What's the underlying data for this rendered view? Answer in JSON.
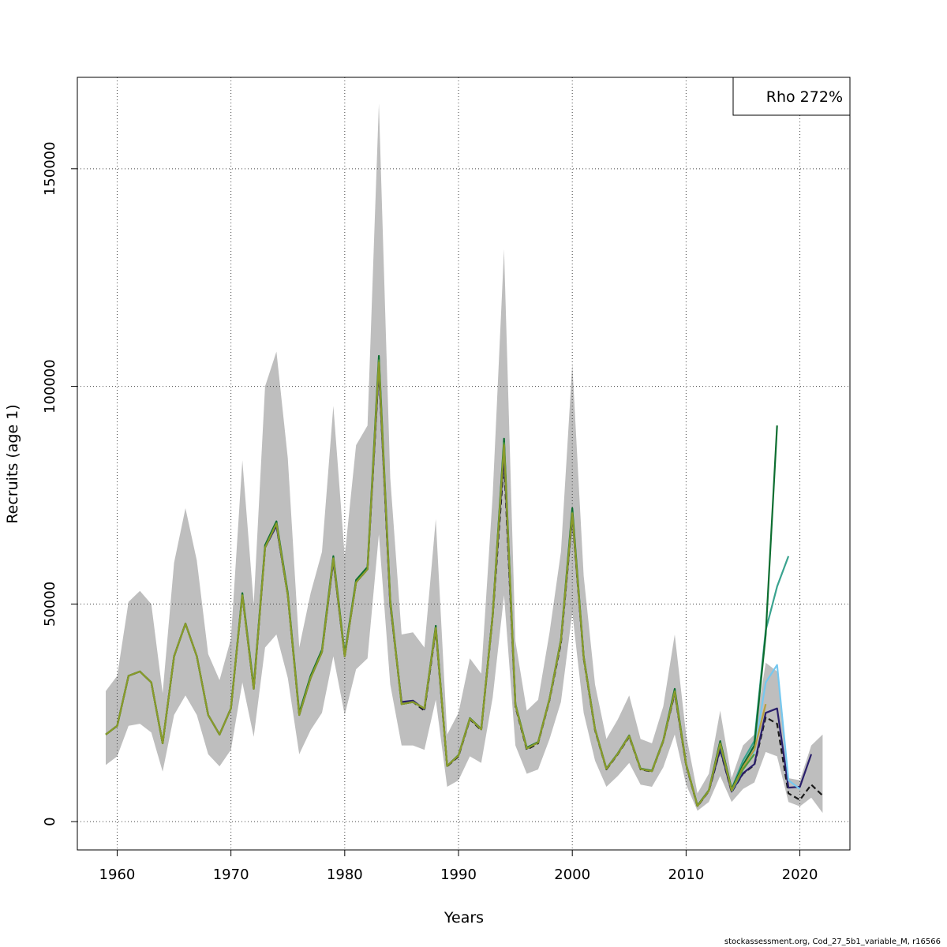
{
  "chart_data": {
    "type": "line",
    "ylabel": "Recruits (age 1)",
    "xlabel": "Years",
    "xlim": [
      1956.5,
      2024.4
    ],
    "ylim": [
      -6500,
      171000
    ],
    "x_ticks": [
      1960,
      1970,
      1980,
      1990,
      2000,
      2010,
      2020
    ],
    "y_ticks": [
      0,
      50000,
      100000,
      150000
    ],
    "grid": true,
    "legend_text": "Rho 272%",
    "legend_position": "top-right",
    "confidence_band": {
      "color": "#bebebe",
      "years": [
        1959,
        1960,
        1961,
        1962,
        1963,
        1964,
        1965,
        1966,
        1967,
        1968,
        1969,
        1970,
        1971,
        1972,
        1973,
        1974,
        1975,
        1976,
        1977,
        1978,
        1979,
        1980,
        1981,
        1982,
        1983,
        1984,
        1985,
        1986,
        1987,
        1988,
        1989,
        1990,
        1991,
        1992,
        1993,
        1994,
        1995,
        1996,
        1997,
        1998,
        1999,
        2000,
        2001,
        2002,
        2003,
        2004,
        2005,
        2006,
        2007,
        2008,
        2009,
        2010,
        2011,
        2012,
        2013,
        2014,
        2015,
        2016,
        2017,
        2018,
        2019,
        2020,
        2021,
        2022
      ],
      "lower": [
        13000,
        15000,
        22000,
        22500,
        20500,
        11500,
        24500,
        29000,
        24500,
        15500,
        12700,
        16500,
        32000,
        19500,
        40000,
        43000,
        33000,
        15500,
        21000,
        25000,
        38000,
        24500,
        35000,
        37500,
        66000,
        31500,
        17500,
        17500,
        16500,
        28000,
        8000,
        9500,
        15000,
        13500,
        28500,
        52000,
        17500,
        11000,
        12000,
        19000,
        27500,
        48000,
        25000,
        14000,
        8000,
        10500,
        13500,
        8500,
        8000,
        12500,
        20000,
        8500,
        2500,
        4500,
        10500,
        4500,
        7500,
        9000,
        16000,
        15000,
        4500,
        3500,
        5500,
        2000
      ],
      "upper": [
        30000,
        33500,
        50500,
        53000,
        50000,
        29500,
        59500,
        72000,
        60000,
        38500,
        32500,
        42000,
        83000,
        50000,
        100000,
        108000,
        83500,
        40000,
        52500,
        62000,
        95500,
        61000,
        86500,
        91000,
        165000,
        79000,
        43000,
        43500,
        40000,
        69500,
        20000,
        25000,
        37500,
        34000,
        75000,
        131500,
        41500,
        25500,
        28000,
        43500,
        62000,
        105000,
        56500,
        31500,
        19000,
        23500,
        29000,
        19000,
        18000,
        26500,
        43000,
        20000,
        6500,
        11000,
        25500,
        10000,
        17500,
        20000,
        36500,
        34500,
        10000,
        9500,
        17500,
        20000
      ]
    },
    "series": [
      {
        "color": "#1a1a1a",
        "dashed": true,
        "x": [
          1959,
          1960,
          1961,
          1962,
          1963,
          1964,
          1965,
          1966,
          1967,
          1968,
          1969,
          1970,
          1971,
          1972,
          1973,
          1974,
          1975,
          1976,
          1977,
          1978,
          1979,
          1980,
          1981,
          1982,
          1983,
          1984,
          1985,
          1986,
          1987,
          1988,
          1989,
          1990,
          1991,
          1992,
          1993,
          1994,
          1995,
          1996,
          1997,
          1998,
          1999,
          2000,
          2001,
          2002,
          2003,
          2004,
          2005,
          2006,
          2007,
          2008,
          2009,
          2010,
          2011,
          2012,
          2013,
          2014,
          2015,
          2016,
          2017,
          2018,
          2019,
          2020,
          2021,
          2022
        ],
        "y": [
          20000,
          22000,
          33500,
          34500,
          32000,
          18000,
          38000,
          45500,
          38000,
          24500,
          20000,
          26000,
          52000,
          30500,
          63000,
          68000,
          52000,
          24500,
          33000,
          39000,
          60000,
          38000,
          55000,
          58000,
          104000,
          50000,
          27000,
          27500,
          25500,
          44000,
          12700,
          15000,
          23500,
          21000,
          47000,
          83000,
          26500,
          16500,
          18000,
          28000,
          41000,
          70000,
          37500,
          21000,
          12000,
          15500,
          19500,
          12000,
          11500,
          18500,
          29500,
          13000,
          3500,
          7000,
          16500,
          6800,
          11000,
          13000,
          24000,
          22500,
          6500,
          5000,
          8500,
          6000
        ]
      },
      {
        "color": "#2a1f6b",
        "dashed": false,
        "x": [
          1959,
          1960,
          1961,
          1962,
          1963,
          1964,
          1965,
          1966,
          1967,
          1968,
          1969,
          1970,
          1971,
          1972,
          1973,
          1974,
          1975,
          1976,
          1977,
          1978,
          1979,
          1980,
          1981,
          1982,
          1983,
          1984,
          1985,
          1986,
          1987,
          1988,
          1989,
          1990,
          1991,
          1992,
          1993,
          1994,
          1995,
          1996,
          1997,
          1998,
          1999,
          2000,
          2001,
          2002,
          2003,
          2004,
          2005,
          2006,
          2007,
          2008,
          2009,
          2010,
          2011,
          2012,
          2013,
          2014,
          2015,
          2016,
          2017,
          2018,
          2019,
          2020,
          2021
        ],
        "y": [
          20000,
          22000,
          33500,
          34500,
          32000,
          18000,
          38000,
          45500,
          38000,
          24500,
          20000,
          26000,
          52000,
          30500,
          63000,
          68000,
          52000,
          24500,
          33000,
          39000,
          60000,
          38000,
          55000,
          58000,
          104500,
          50000,
          27500,
          27800,
          25800,
          44500,
          12800,
          15200,
          23600,
          21200,
          47500,
          85000,
          26800,
          16800,
          18200,
          28200,
          41500,
          70500,
          37800,
          21200,
          12100,
          15600,
          19700,
          12100,
          11600,
          18600,
          29700,
          13100,
          3600,
          7100,
          16700,
          6900,
          11100,
          13200,
          25000,
          26000,
          7800,
          8000,
          15500
        ]
      },
      {
        "color": "#76c8ef",
        "dashed": false,
        "x": [
          2014,
          2015,
          2016,
          2017,
          2018,
          2019,
          2020
        ],
        "y": [
          7000,
          12000,
          16000,
          32000,
          36000,
          9500,
          7500
        ]
      },
      {
        "color": "#3aa38f",
        "dashed": false,
        "x": [
          2013,
          2014,
          2015,
          2016,
          2017,
          2018,
          2019
        ],
        "y": [
          17500,
          7500,
          14000,
          18500,
          44000,
          54000,
          61000
        ]
      },
      {
        "color": "#0d6e30",
        "dashed": false,
        "x": [
          1959,
          1960,
          1961,
          1962,
          1963,
          1964,
          1965,
          1966,
          1967,
          1968,
          1969,
          1970,
          1971,
          1972,
          1973,
          1974,
          1975,
          1976,
          1977,
          1978,
          1979,
          1980,
          1981,
          1982,
          1983,
          1984,
          1985,
          1986,
          1987,
          1988,
          1989,
          1990,
          1991,
          1992,
          1993,
          1994,
          1995,
          1996,
          1997,
          1998,
          1999,
          2000,
          2001,
          2002,
          2003,
          2004,
          2005,
          2006,
          2007,
          2008,
          2009,
          2010,
          2011,
          2012,
          2013,
          2014,
          2015,
          2016,
          2017,
          2018
        ],
        "y": [
          20000,
          22000,
          33500,
          34500,
          32000,
          18000,
          38000,
          45500,
          38000,
          24500,
          20000,
          26000,
          52500,
          31000,
          63500,
          69000,
          52500,
          25000,
          33500,
          39500,
          61000,
          38500,
          55500,
          58500,
          107000,
          51000,
          27000,
          27500,
          26000,
          45000,
          12800,
          15300,
          23800,
          21300,
          47500,
          88000,
          27000,
          17000,
          18300,
          28300,
          41800,
          72000,
          38000,
          21300,
          12200,
          15700,
          19800,
          12200,
          11700,
          18700,
          30500,
          13300,
          3700,
          7200,
          18500,
          7500,
          13000,
          17500,
          43000,
          91000
        ]
      },
      {
        "color": "#b8a040",
        "dashed": false,
        "x": [
          2013,
          2014,
          2015,
          2016,
          2017
        ],
        "y": [
          18000,
          7200,
          12500,
          16500,
          27000
        ]
      },
      {
        "color": "#4f9a3a",
        "dashed": false,
        "x": [
          1959,
          1960,
          1961,
          1962,
          1963,
          1964,
          1965,
          1966,
          1967,
          1968,
          1969,
          1970,
          1971,
          1972,
          1973,
          1974,
          1975,
          1976,
          1977,
          1978,
          1979,
          1980,
          1981,
          1982,
          1983,
          1984,
          1985,
          1986,
          1987,
          1988,
          1989,
          1990,
          1991,
          1992,
          1993,
          1994,
          1995,
          1996,
          1997,
          1998,
          1999,
          2000,
          2001,
          2002,
          2003,
          2004,
          2005,
          2006,
          2007,
          2008,
          2009,
          2010,
          2011,
          2012,
          2013,
          2014,
          2015,
          2016
        ],
        "y": [
          20000,
          22000,
          33500,
          34500,
          32000,
          18000,
          38000,
          45500,
          38000,
          24500,
          20000,
          26000,
          52000,
          30500,
          63000,
          68500,
          52000,
          24500,
          33000,
          39000,
          60500,
          38000,
          55000,
          58000,
          106000,
          50500,
          27000,
          27500,
          26000,
          44500,
          12800,
          15200,
          23700,
          21200,
          47300,
          87000,
          26800,
          16800,
          18200,
          28200,
          41600,
          71000,
          37800,
          21200,
          12100,
          15600,
          19700,
          12100,
          11600,
          18600,
          30000,
          13200,
          3600,
          7100,
          18000,
          7200,
          12000,
          15500
        ]
      },
      {
        "color": "#8a9a2a",
        "dashed": false,
        "x": [
          1959,
          1960,
          1961,
          1962,
          1963,
          1964,
          1965,
          1966,
          1967,
          1968,
          1969,
          1970,
          1971,
          1972,
          1973,
          1974,
          1975,
          1976,
          1977,
          1978,
          1979,
          1980,
          1981,
          1982,
          1983,
          1984,
          1985,
          1986,
          1987,
          1988,
          1989,
          1990,
          1991,
          1992,
          1993,
          1994,
          1995,
          1996,
          1997,
          1998,
          1999,
          2000,
          2001,
          2002,
          2003,
          2004,
          2005,
          2006,
          2007,
          2008,
          2009,
          2010,
          2011,
          2012,
          2013,
          2014,
          2015
        ],
        "y": [
          20000,
          22000,
          33500,
          34500,
          32000,
          18000,
          38000,
          45500,
          38000,
          24500,
          20000,
          26000,
          52000,
          30500,
          63000,
          68500,
          52000,
          24500,
          33000,
          39000,
          60500,
          38000,
          55000,
          58000,
          105500,
          50500,
          27000,
          27500,
          26000,
          44500,
          12800,
          15200,
          23700,
          21200,
          47300,
          86500,
          26800,
          16800,
          18200,
          28200,
          41600,
          70800,
          37800,
          21200,
          12100,
          15600,
          19700,
          12100,
          11600,
          18600,
          29900,
          13200,
          3600,
          7100,
          18000,
          7100,
          12500
        ]
      }
    ]
  },
  "footer": "stockassessment.org, Cod_27_5b1_variable_M, r16566"
}
